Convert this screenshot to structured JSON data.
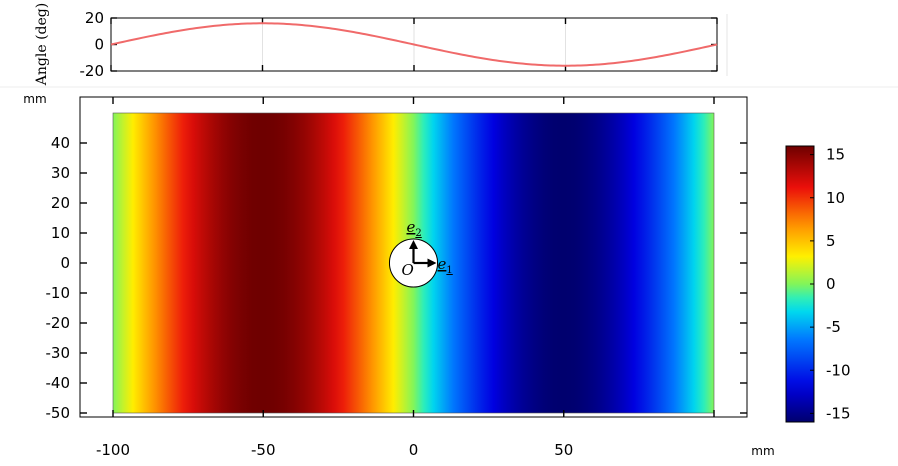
{
  "chart_data": [
    {
      "type": "line",
      "ylabel": "Angle (deg)",
      "xlim": [
        -100,
        100
      ],
      "ylim": [
        -20,
        20
      ],
      "yticks": [
        "20",
        "0",
        "-20"
      ],
      "series": [
        {
          "color": "#f06a6a",
          "x": [
            -100,
            -87.5,
            -75,
            -62.5,
            -50,
            -37.5,
            -25,
            -12.5,
            0,
            12.5,
            25,
            37.5,
            50,
            62.5,
            75,
            87.5,
            100
          ],
          "values": [
            0,
            6.2,
            11.4,
            14.9,
            16,
            14.9,
            11.4,
            6.2,
            0,
            -6.2,
            -11.4,
            -14.9,
            -16,
            -14.9,
            -11.4,
            -6.2,
            0
          ]
        }
      ]
    },
    {
      "type": "heatmap",
      "xunit": "mm",
      "yunit": "mm",
      "xlim": [
        -100,
        100
      ],
      "ylim": [
        -50,
        50
      ],
      "xticks": [
        "-100",
        "-50",
        "0",
        "50"
      ],
      "yticks": [
        "40",
        "30",
        "20",
        "10",
        "0",
        "-10",
        "-20",
        "-30",
        "-40",
        "-50"
      ],
      "field": "16 sin(-pi x / 100)",
      "profile_x": [
        -100,
        -87.5,
        -75,
        -62.5,
        -50,
        -37.5,
        -25,
        -12.5,
        0,
        12.5,
        25,
        37.5,
        50,
        62.5,
        75,
        87.5,
        100
      ],
      "profile_values": [
        0,
        6.2,
        11.4,
        14.9,
        16,
        14.9,
        11.4,
        6.2,
        0,
        -6.2,
        -11.4,
        -14.9,
        -16,
        -14.9,
        -11.4,
        -6.2,
        0
      ],
      "hole": {
        "center": [
          0,
          0
        ],
        "radius": 8
      },
      "annotations": {
        "origin": "O",
        "e1": "e",
        "e1_sub": "1",
        "e2": "e",
        "e2_sub": "2"
      },
      "colorbar": {
        "range": [
          -16,
          16
        ],
        "ticks": [
          "15",
          "10",
          "5",
          "0",
          "-5",
          "-10",
          "-15"
        ],
        "colormap": "rainbow"
      }
    }
  ]
}
